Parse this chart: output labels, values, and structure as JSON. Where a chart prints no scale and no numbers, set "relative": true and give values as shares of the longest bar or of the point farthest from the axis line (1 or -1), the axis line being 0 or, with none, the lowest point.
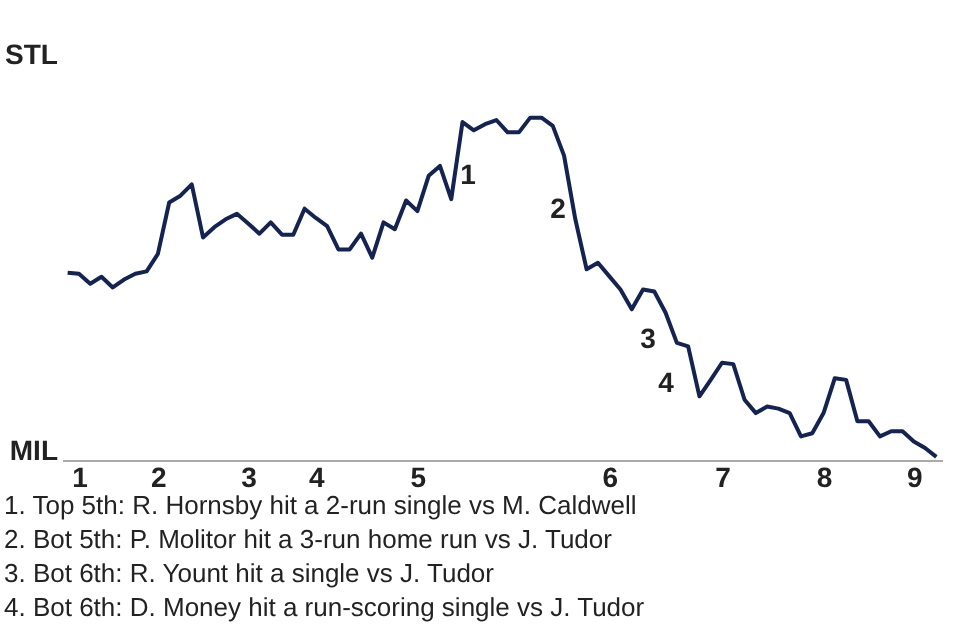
{
  "chart_data": {
    "type": "line",
    "color": "#14234f",
    "relative": true,
    "categories": [
      null,
      "1",
      null,
      null,
      null,
      null,
      null,
      null,
      "2",
      null,
      null,
      null,
      null,
      null,
      null,
      null,
      "3",
      null,
      null,
      null,
      null,
      null,
      "4",
      null,
      null,
      null,
      null,
      null,
      null,
      null,
      null,
      "5",
      null,
      null,
      null,
      null,
      null,
      null,
      null,
      null,
      null,
      null,
      null,
      null,
      null,
      null,
      null,
      null,
      "6",
      null,
      null,
      null,
      null,
      null,
      null,
      null,
      null,
      null,
      "7",
      null,
      null,
      null,
      null,
      null,
      null,
      null,
      null,
      "8",
      null,
      null,
      null,
      null,
      null,
      null,
      null,
      "9",
      null,
      null
    ],
    "values": [
      0.547,
      0.544,
      0.515,
      0.535,
      0.504,
      0.527,
      0.544,
      0.551,
      0.602,
      0.752,
      0.772,
      0.805,
      0.65,
      0.68,
      0.703,
      0.719,
      0.691,
      0.661,
      0.694,
      0.658,
      0.658,
      0.734,
      0.707,
      0.683,
      0.615,
      0.615,
      0.661,
      0.591,
      0.694,
      0.674,
      0.758,
      0.727,
      0.83,
      0.859,
      0.762,
      0.987,
      0.963,
      0.981,
      0.993,
      0.957,
      0.957,
      1,
      1,
      0.976,
      0.889,
      0.703,
      0.557,
      0.576,
      0.537,
      0.498,
      0.44,
      0.498,
      0.492,
      0.43,
      0.342,
      0.332,
      0.186,
      0.234,
      0.284,
      0.28,
      0.176,
      0.137,
      0.156,
      0.15,
      0.137,
      0.069,
      0.078,
      0.137,
      0.239,
      0.234,
      0.113,
      0.113,
      0.069,
      0.084,
      0.084,
      0.054,
      0.035,
      0.009
    ],
    "marker": "none",
    "line_style": "solid",
    "annotations": [
      "STL",
      "MIL",
      "1",
      "2",
      "3",
      "4",
      "1. Top 5th: R. Hornsby hit a 2-run single vs M. Caldwell",
      "2. Bot 5th: P. Molitor hit a 3-run home run vs J. Tudor",
      "3. Bot 6th: R. Yount hit a single vs J. Tudor",
      "4. Bot 6th: D. Money hit a run-scoring single vs J. Tudor"
    ]
  }
}
